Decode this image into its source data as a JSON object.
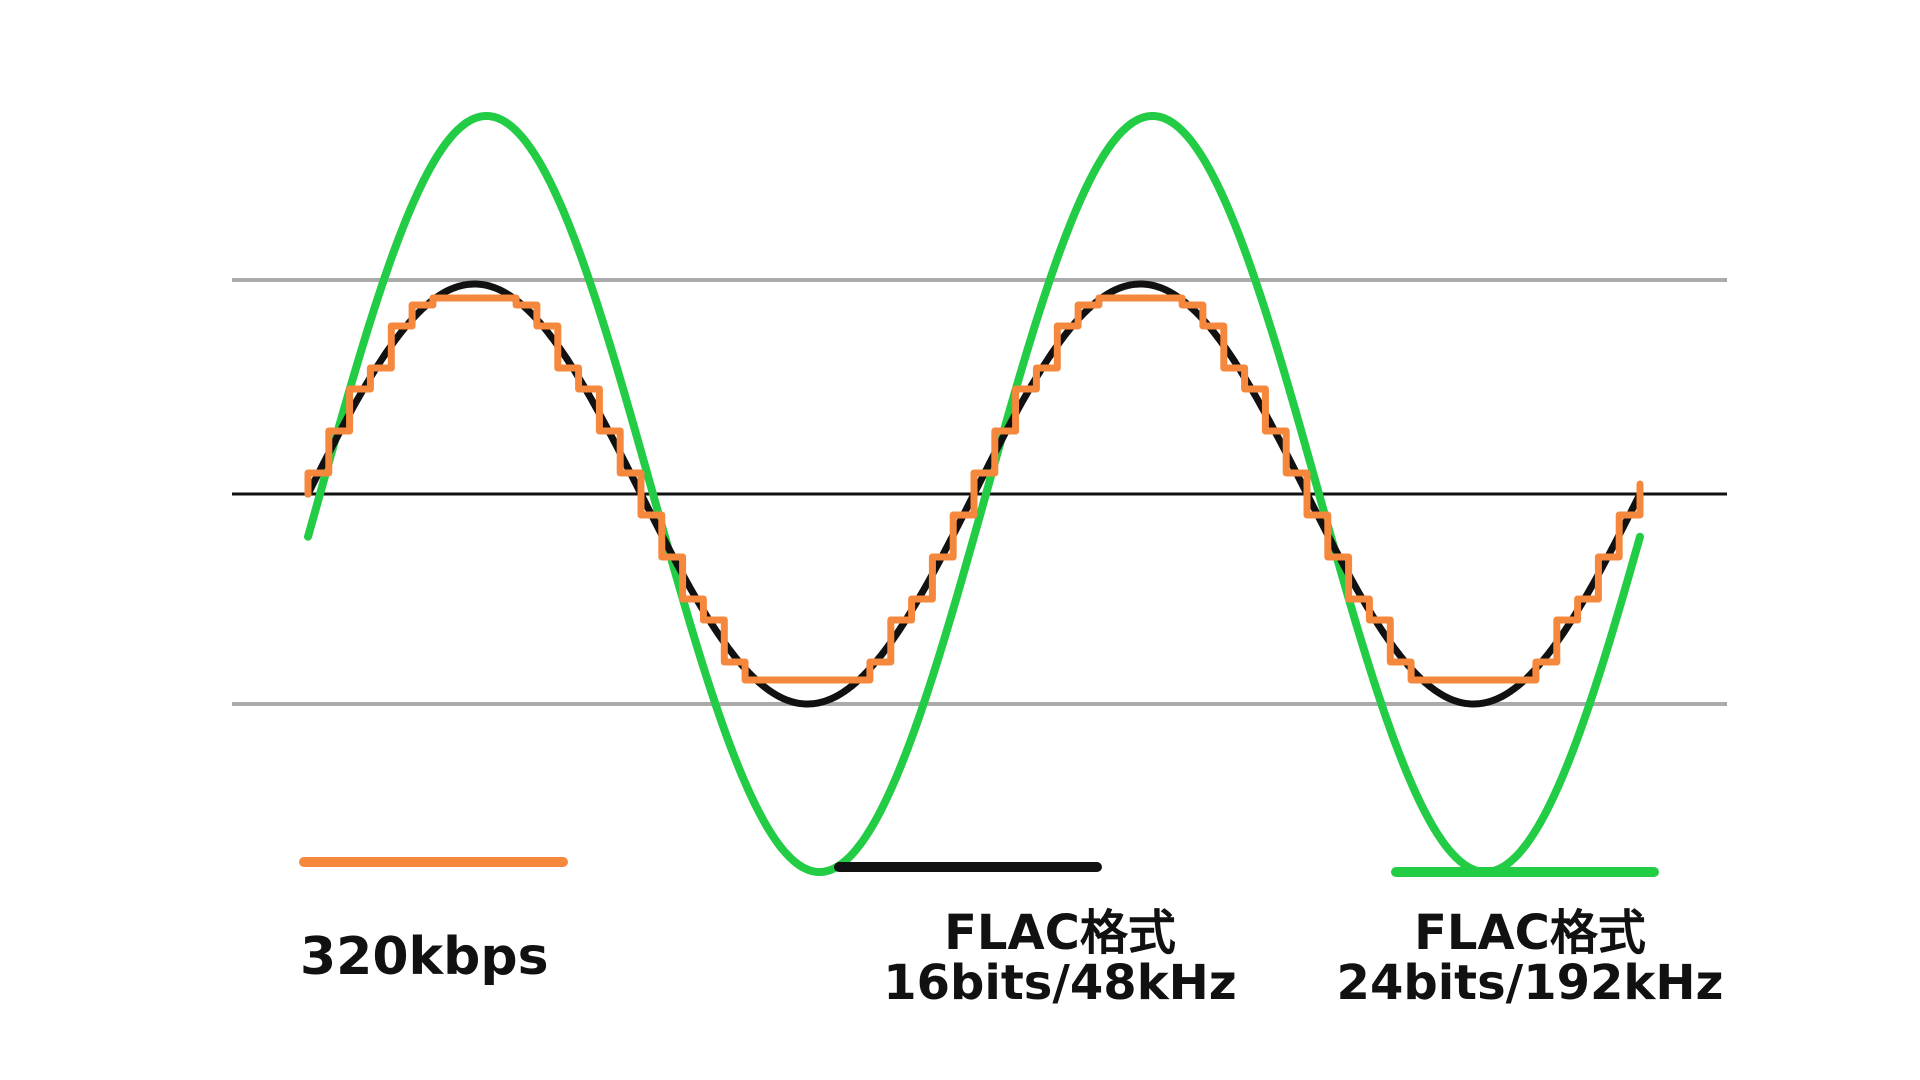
{
  "colors": {
    "background": "#ffffff",
    "reference_lines": "#aaaaaa",
    "axis": "#111111",
    "mp3": "#f5883c",
    "flac16": "#111111",
    "flac24": "#22cc44",
    "text": "#111111"
  },
  "legend": {
    "mp3": {
      "label": "320kbps"
    },
    "flac16": {
      "line1": "FLAC格式",
      "line2": "16bits/48kHz"
    },
    "flac24": {
      "line1": "FLAC格式",
      "line2": "24bits/192kHz"
    }
  }
}
